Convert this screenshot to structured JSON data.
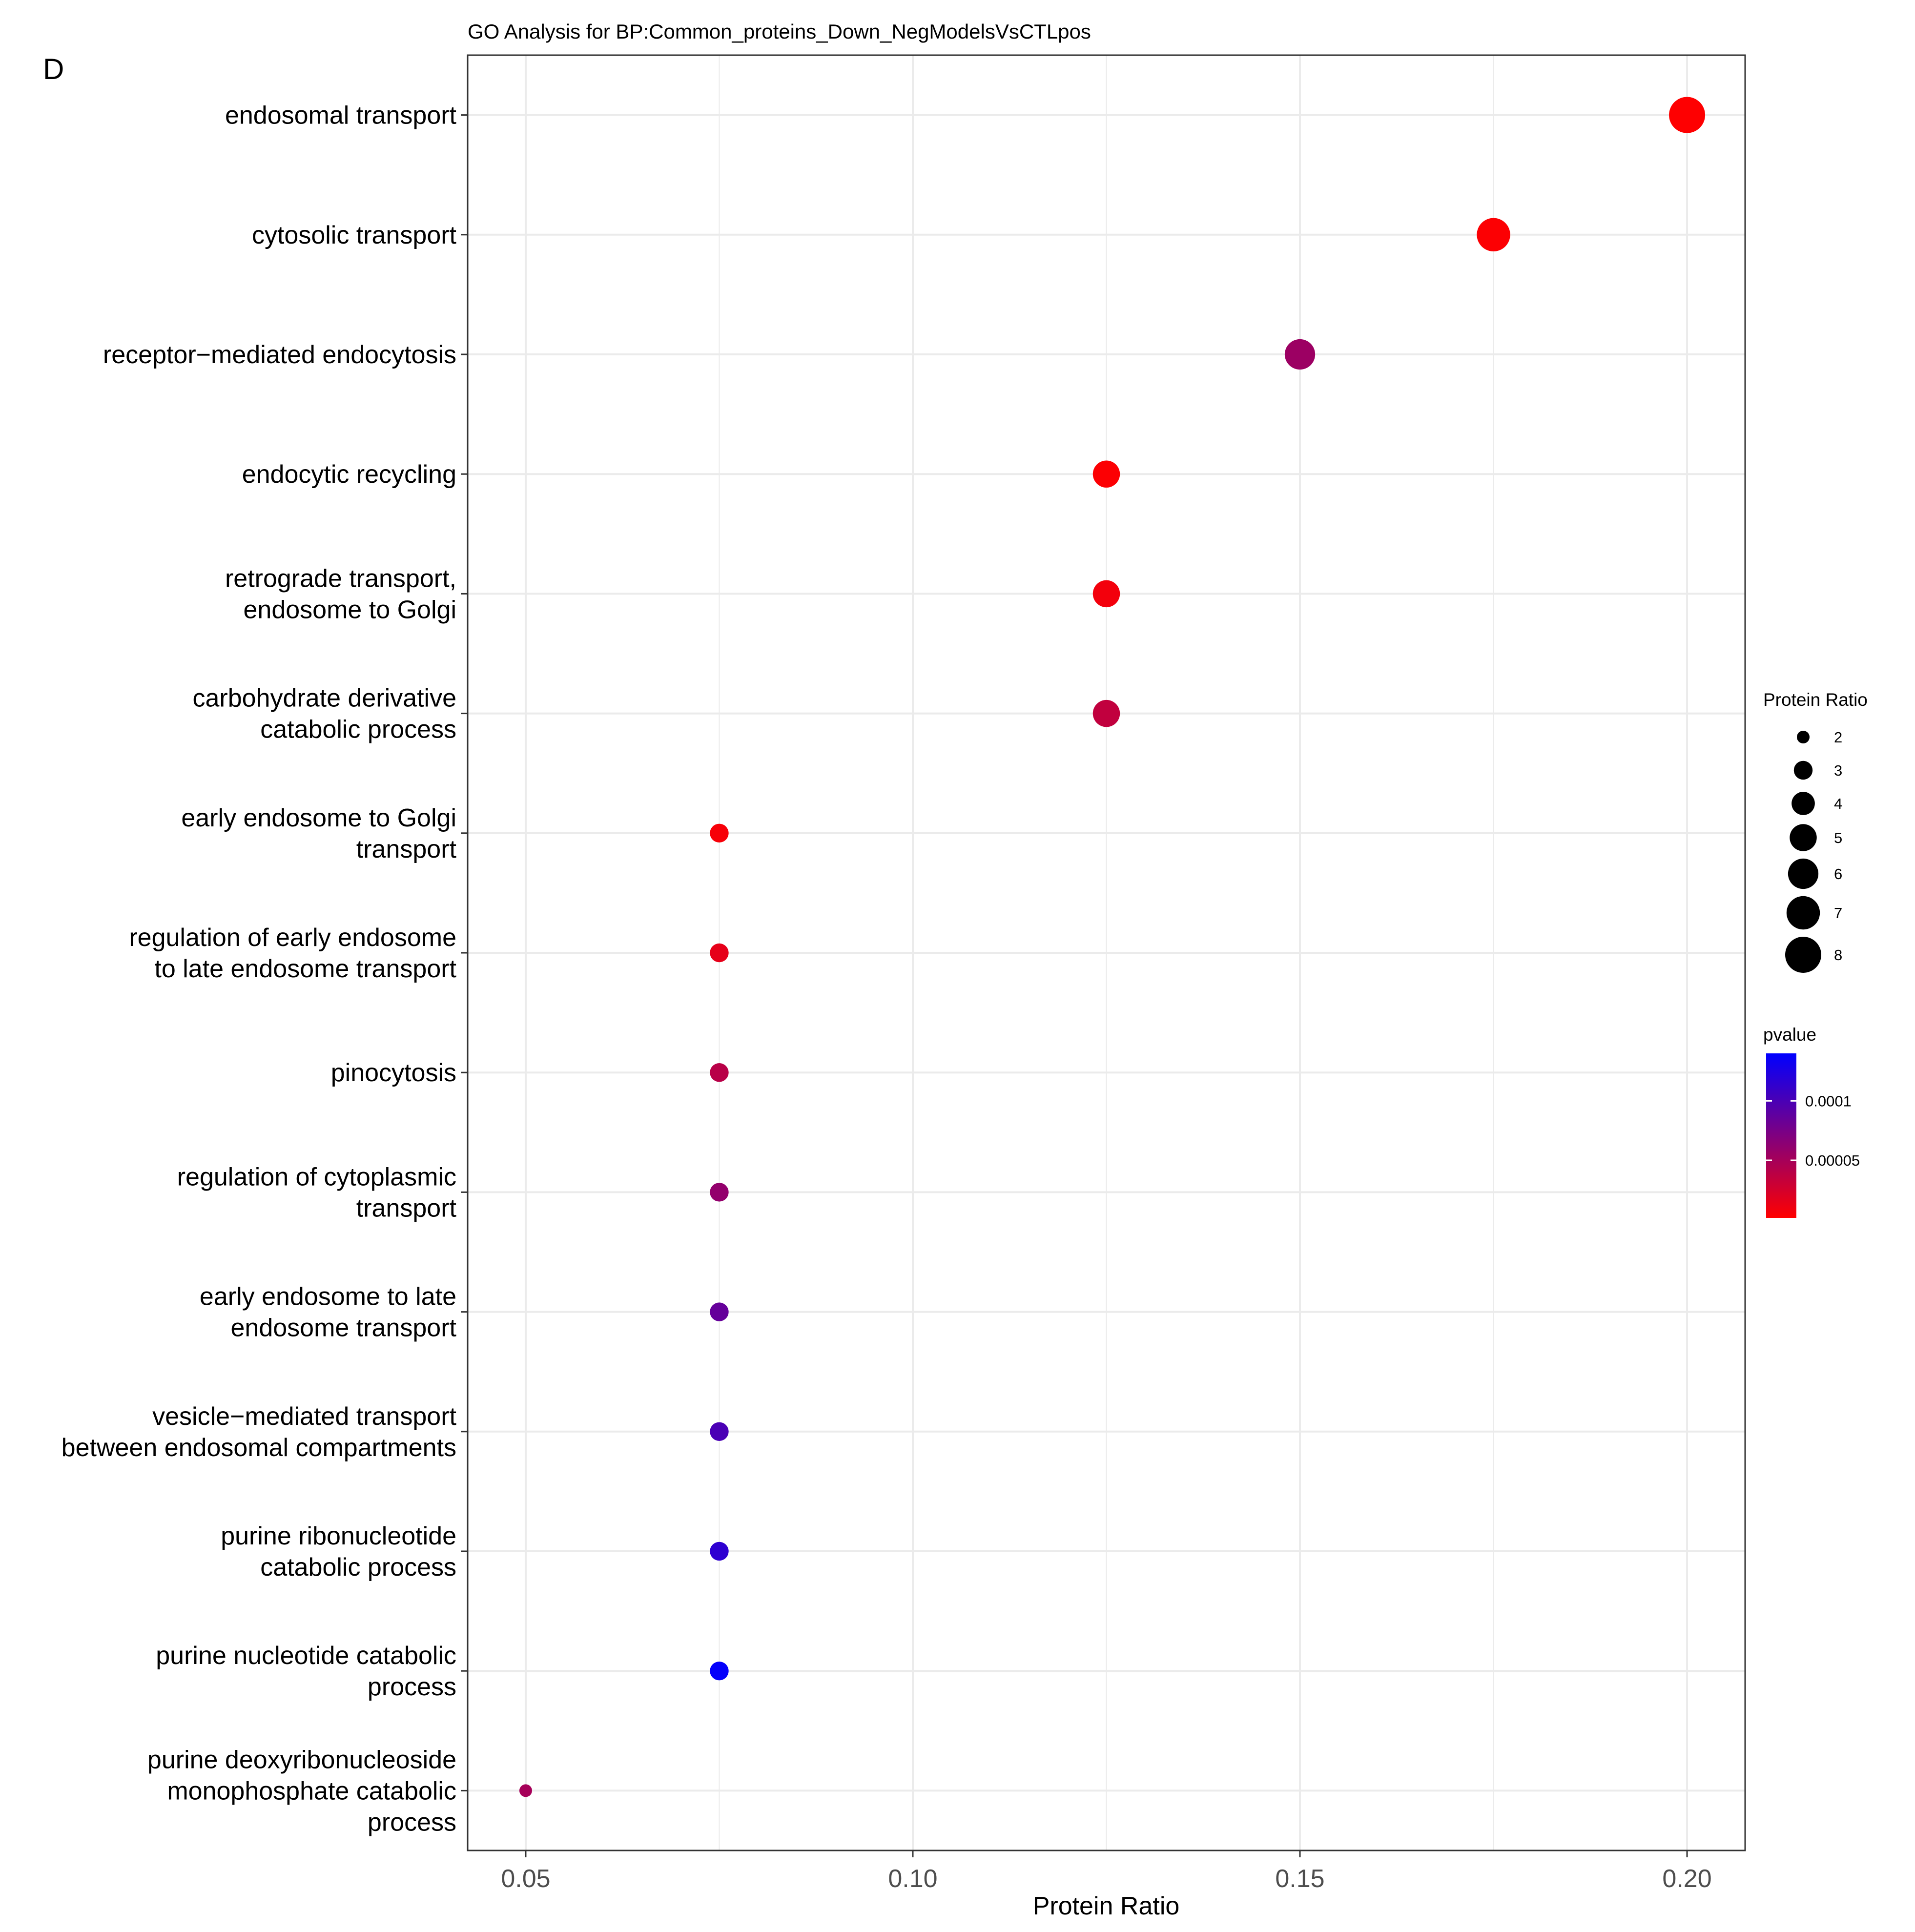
{
  "panel_label": "D",
  "chart_data": {
    "type": "scatter",
    "title": "GO Analysis for BP:Common_proteins_Down_NegModelsVsCTLpos",
    "xlabel": "Protein Ratio",
    "ylabel": "",
    "xlim": [
      0.0425,
      0.2075
    ],
    "x_ticks": [
      "0.05",
      "0.10",
      "0.15",
      "0.20"
    ],
    "x_tick_values": [
      0.05,
      0.1,
      0.15,
      0.2
    ],
    "grid": true,
    "categories": [
      "endosomal transport",
      "cytosolic transport",
      "receptor−mediated endocytosis",
      "endocytic recycling",
      "retrograde transport,\nendosome to Golgi",
      "carbohydrate derivative\ncatabolic process",
      "early endosome to Golgi\ntransport",
      "regulation of early endosome\nto late endosome transport",
      "pinocytosis",
      "regulation of cytoplasmic\ntransport",
      "early endosome to late\nendosome transport",
      "vesicle−mediated transport\nbetween endosomal compartments",
      "purine ribonucleotide\ncatabolic process",
      "purine nucleotide catabolic\nprocess",
      "purine deoxyribonucleoside\nmonophosphate catabolic\nprocess"
    ],
    "points": [
      {
        "term": "endosomal transport",
        "x": 0.2,
        "count": 8,
        "pvalue": 2e-06
      },
      {
        "term": "cytosolic transport",
        "x": 0.175,
        "count": 7,
        "pvalue": 3e-06
      },
      {
        "term": "receptor-mediated endocytosis",
        "x": 0.15,
        "count": 6,
        "pvalue": 5.5e-05
      },
      {
        "term": "endocytic recycling",
        "x": 0.125,
        "count": 5,
        "pvalue": 3e-06
      },
      {
        "term": "retrograde transport, endosome to Golgi",
        "x": 0.125,
        "count": 5,
        "pvalue": 8e-06
      },
      {
        "term": "carbohydrate derivative catabolic process",
        "x": 0.125,
        "count": 5,
        "pvalue": 3.5e-05
      },
      {
        "term": "early endosome to Golgi transport",
        "x": 0.075,
        "count": 3,
        "pvalue": 6e-06
      },
      {
        "term": "regulation of early endosome to late endosome transport",
        "x": 0.075,
        "count": 3,
        "pvalue": 1.5e-05
      },
      {
        "term": "pinocytosis",
        "x": 0.075,
        "count": 3,
        "pvalue": 4e-05
      },
      {
        "term": "regulation of cytoplasmic transport",
        "x": 0.075,
        "count": 3,
        "pvalue": 6e-05
      },
      {
        "term": "early endosome to late endosome transport",
        "x": 0.075,
        "count": 3,
        "pvalue": 8.5e-05
      },
      {
        "term": "vesicle-mediated transport between endosomal compartments",
        "x": 0.075,
        "count": 3,
        "pvalue": 0.0001
      },
      {
        "term": "purine ribonucleotide catabolic process",
        "x": 0.075,
        "count": 3,
        "pvalue": 0.000115
      },
      {
        "term": "purine nucleotide catabolic process",
        "x": 0.075,
        "count": 3,
        "pvalue": 0.000138
      },
      {
        "term": "purine deoxyribonucleoside monophosphate catabolic process",
        "x": 0.05,
        "count": 2,
        "pvalue": 5e-05
      }
    ],
    "size_legend": {
      "title": "Protein Ratio",
      "values": [
        2,
        3,
        4,
        5,
        6,
        7,
        8
      ],
      "labels": [
        "2",
        "3",
        "4",
        "5",
        "6",
        "7",
        "8"
      ]
    },
    "color_legend": {
      "title": "pvalue",
      "range": [
        1.5e-06,
        0.00014
      ],
      "ticks": [
        5e-05,
        0.0001
      ],
      "tick_labels": [
        "0.00005",
        "0.0001"
      ],
      "low_color": "#ff0000",
      "high_color": "#0000ff"
    }
  }
}
